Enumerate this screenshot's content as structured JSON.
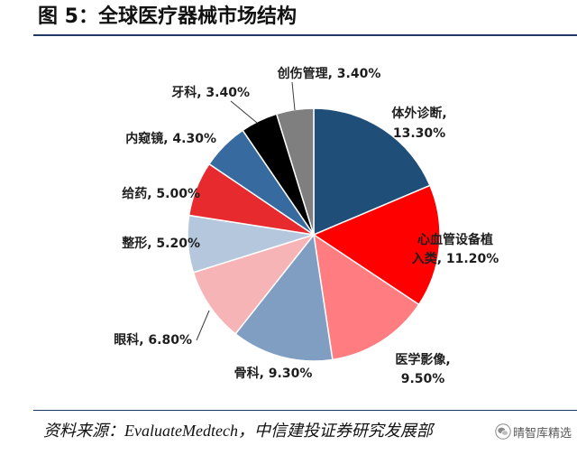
{
  "chart_data": {
    "type": "pie",
    "title": "图 5：全球医疗器械市场结构",
    "categories": [
      "体外诊断",
      "心血管设备植入类",
      "医学影像",
      "骨科",
      "眼科",
      "整形",
      "给药",
      "内窥镜",
      "牙科",
      "创伤管理"
    ],
    "values": [
      13.3,
      11.2,
      9.5,
      9.3,
      6.8,
      5.2,
      5.0,
      4.3,
      3.4,
      3.4
    ],
    "unit": "%",
    "colors": [
      "#1f4e79",
      "#fe0000",
      "#ff7c80",
      "#809ec2",
      "#f7b4b7",
      "#b5c7dc",
      "#e62a2d",
      "#376a9f",
      "#000000",
      "#7f7f7f"
    ]
  },
  "source": "资料来源：EvaluateMedtech，中信建投证券研究发展部",
  "watermark": {
    "icon": "wechat-icon",
    "text": "晴智库精选"
  }
}
